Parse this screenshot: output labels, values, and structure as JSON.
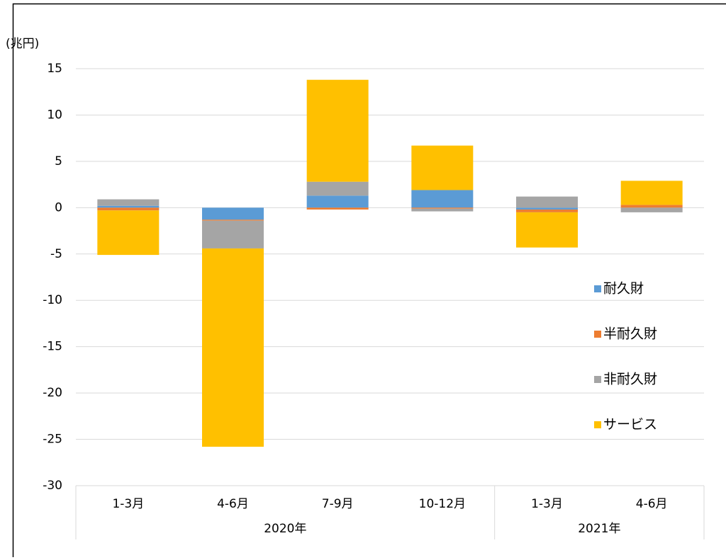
{
  "chart_data": {
    "type": "stacked_bar",
    "y_label": "(兆円)",
    "categories": [
      "1-3月",
      "4-6月",
      "7-9月",
      "10-12月",
      "1-3月",
      "4-6月"
    ],
    "groups": [
      {
        "name": "2020年",
        "count": 4
      },
      {
        "name": "2021年",
        "count": 2
      }
    ],
    "series": [
      {
        "name": "耐久財",
        "color": "#5b9bd5",
        "values": [
          0.2,
          -1.3,
          1.3,
          1.9,
          -0.2,
          0.0
        ]
      },
      {
        "name": "半耐久財",
        "color": "#ed7d31",
        "values": [
          -0.3,
          -0.1,
          -0.2,
          -0.1,
          -0.3,
          0.3
        ]
      },
      {
        "name": "非耐久財",
        "color": "#a5a5a5",
        "values": [
          0.7,
          -3.0,
          1.5,
          -0.3,
          1.2,
          -0.5
        ]
      },
      {
        "name": "サービス",
        "color": "#ffc000",
        "values": [
          -4.8,
          -21.4,
          11.0,
          4.8,
          -3.8,
          2.6
        ]
      }
    ],
    "ylim": [
      -30,
      15
    ],
    "yticks": [
      -30,
      -25,
      -20,
      -15,
      -10,
      -5,
      0,
      5,
      10,
      15
    ],
    "grid": true,
    "legend": "right"
  }
}
